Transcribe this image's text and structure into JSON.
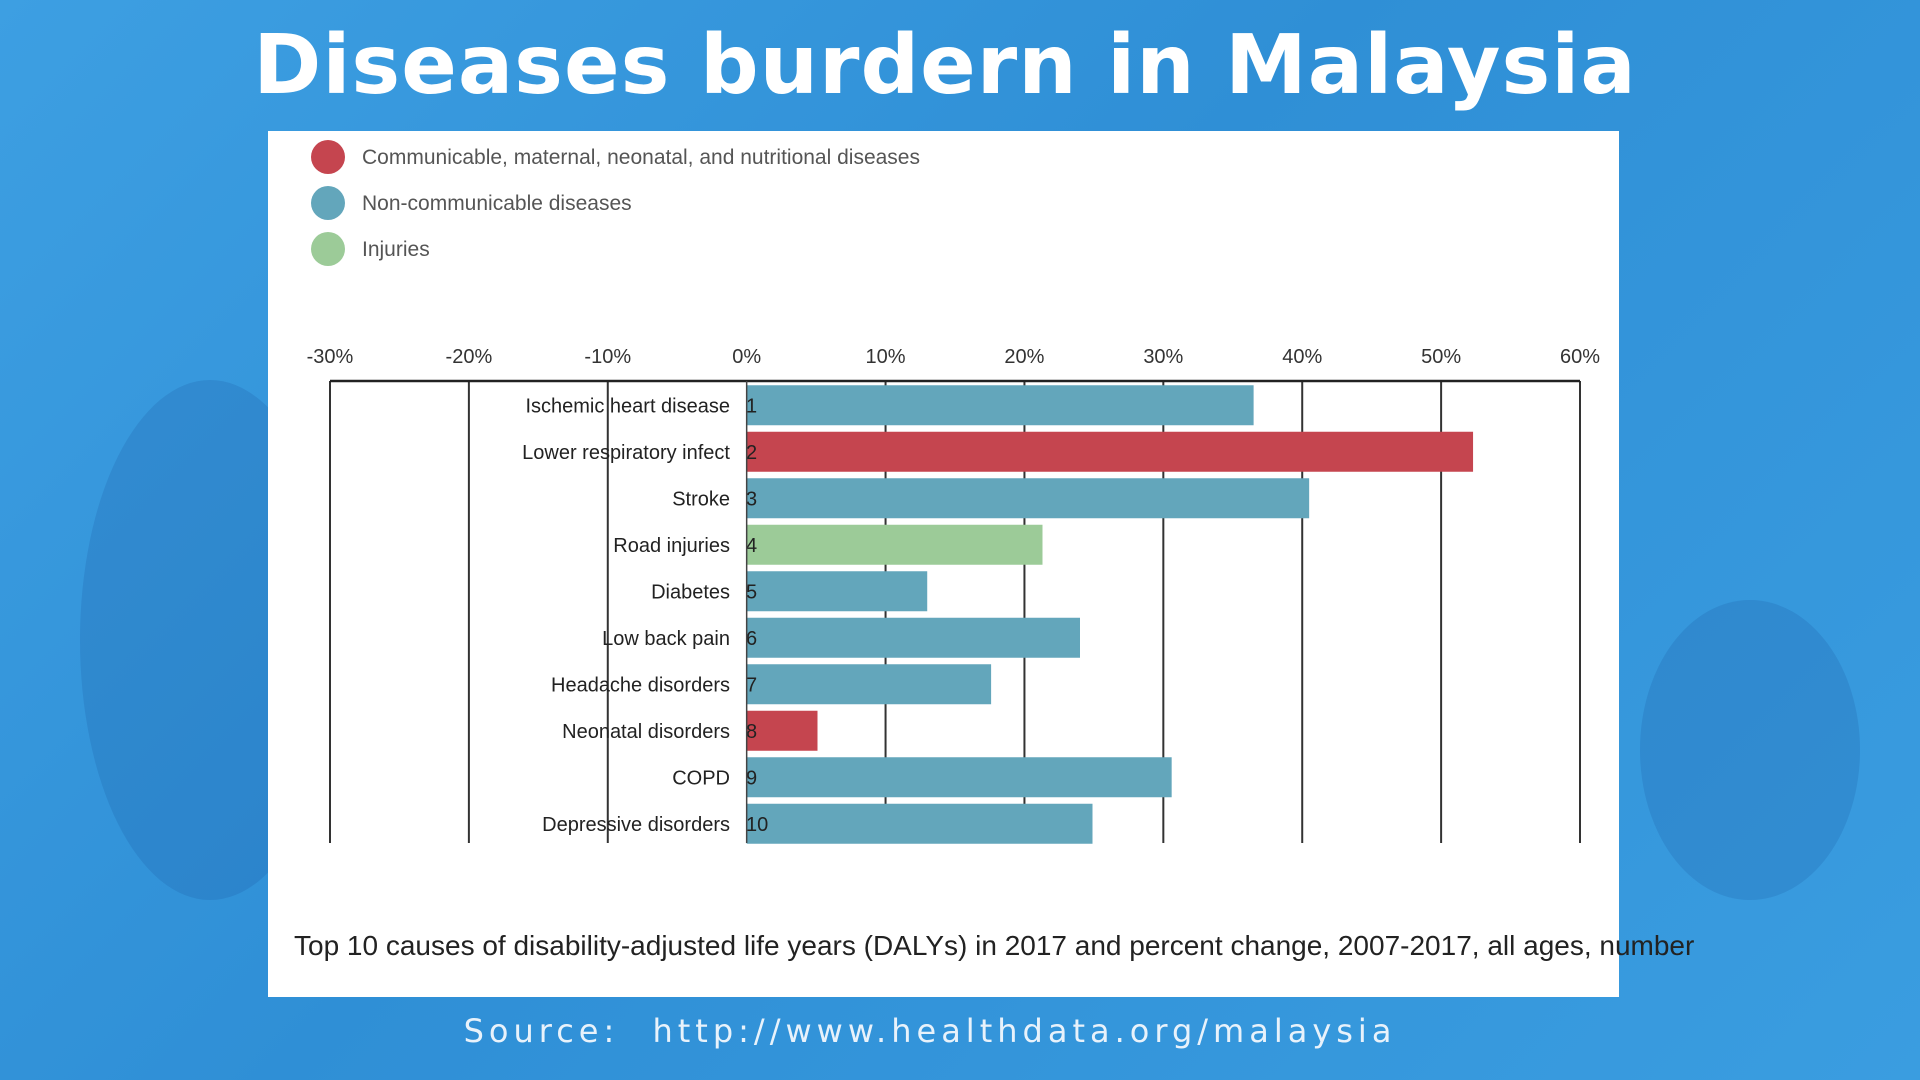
{
  "page": {
    "title": "Diseases burdern in Malaysia",
    "source_label": "Source:",
    "source_url": "http://www.healthdata.org/malaysia"
  },
  "colors": {
    "communicable": "#c5454f",
    "non_communicable": "#63a6bb",
    "injuries": "#9ccb98",
    "background": "#3a9be0"
  },
  "chart_data": {
    "type": "bar",
    "orientation": "horizontal",
    "caption": "Top 10 causes of disability-adjusted life years (DALYs) in 2017 and percent change, 2007-2017, all ages, number",
    "x_ticks": [
      "-30%",
      "-20%",
      "-10%",
      "0%",
      "10%",
      "20%",
      "30%",
      "40%",
      "50%",
      "60%"
    ],
    "xlim": [
      -30,
      60
    ],
    "grid": true,
    "legend_position": "top-left",
    "legend": [
      {
        "key": "communicable",
        "label": "Communicable, maternal, neonatal, and nutritional diseases"
      },
      {
        "key": "non_communicable",
        "label": "Non-communicable diseases"
      },
      {
        "key": "injuries",
        "label": "Injuries"
      }
    ],
    "categories": [
      {
        "rank": "1",
        "label": "Ischemic heart disease",
        "value": 36.5,
        "group": "non_communicable"
      },
      {
        "rank": "2",
        "label": "Lower respiratory infect",
        "value": 52.3,
        "group": "communicable"
      },
      {
        "rank": "3",
        "label": "Stroke",
        "value": 40.5,
        "group": "non_communicable"
      },
      {
        "rank": "4",
        "label": "Road injuries",
        "value": 21.3,
        "group": "injuries"
      },
      {
        "rank": "5",
        "label": "Diabetes",
        "value": 13.0,
        "group": "non_communicable"
      },
      {
        "rank": "6",
        "label": "Low back pain",
        "value": 24.0,
        "group": "non_communicable"
      },
      {
        "rank": "7",
        "label": "Headache disorders",
        "value": 17.6,
        "group": "non_communicable"
      },
      {
        "rank": "8",
        "label": "Neonatal disorders",
        "value": 5.1,
        "group": "communicable"
      },
      {
        "rank": "9",
        "label": "COPD",
        "value": 30.6,
        "group": "non_communicable"
      },
      {
        "rank": "10",
        "label": "Depressive disorders",
        "value": 24.9,
        "group": "non_communicable"
      }
    ]
  }
}
